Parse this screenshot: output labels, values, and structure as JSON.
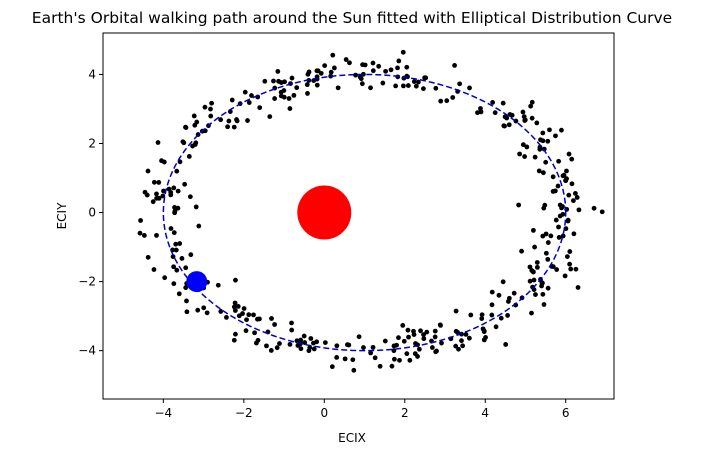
{
  "chart_data": {
    "type": "scatter",
    "title": "Earth's Orbital walking path around the Sun fitted with Elliptical Distribution Curve",
    "xlabel": "ECIX",
    "ylabel": "ECIY",
    "xlim": [
      -5.5,
      7.2
    ],
    "ylim": [
      -5.4,
      5.2
    ],
    "xticks": [
      -4,
      -2,
      0,
      2,
      4,
      6
    ],
    "yticks": [
      -4,
      -2,
      0,
      2,
      4
    ],
    "xtick_labels": [
      "−4",
      "−2",
      "0",
      "2",
      "4",
      "6"
    ],
    "ytick_labels": [
      "−4",
      "−2",
      "0",
      "2",
      "4"
    ],
    "grid": false,
    "ellipse": {
      "center": [
        1,
        0
      ],
      "semi_x": 5,
      "semi_y": 4,
      "color": "#0000cc",
      "style": "dashed"
    },
    "sun": {
      "x": 0,
      "y": 0,
      "color": "#ff0000"
    },
    "earth": {
      "x": -3.17,
      "y": -2.0,
      "color": "#0000ff"
    },
    "points_color": "#000000",
    "points": {
      "count": 420,
      "ellipse_center": [
        1,
        0
      ],
      "semi_x": 5,
      "semi_y": 4,
      "scatter_sd": 0.3
    }
  }
}
